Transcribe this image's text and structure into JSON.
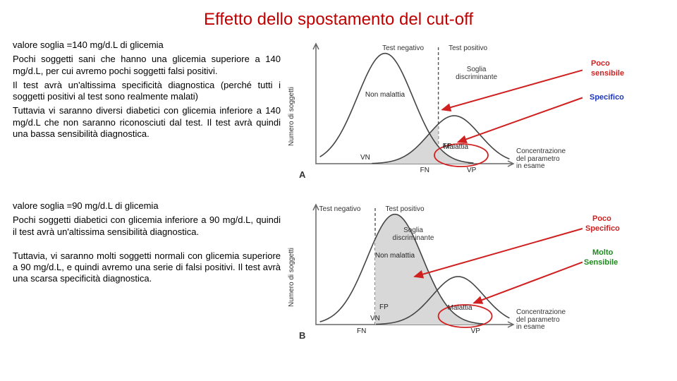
{
  "title": {
    "text": "Effetto dello spostamento del cut-off",
    "color": "#c00000",
    "fontSize": 24
  },
  "colors": {
    "title": "#c00000",
    "bodyText": "#000000",
    "axis": "#666666",
    "curveFill": "#d8d8d8",
    "curveStroke": "#444444",
    "threshold": "#555555",
    "arrow": "#d02020",
    "redText": "#d02020",
    "blueText": "#1a35c4",
    "greenText": "#1d8a1d",
    "labelText": "#333333"
  },
  "sectionA": {
    "subhead": "valore soglia =140 mg/d.L di glicemia",
    "p1": "Pochi soggetti sani che hanno una glicemia superiore a 140 mg/d.L, per cui avremo pochi soggetti falsi positivi.",
    "p2": "Il test avrà un'altissima specificità diagnostica (perché tutti i soggetti positivi al test sono realmente malati)",
    "p3": "Tuttavia vi saranno diversi diabetici con glicemia inferiore a 140 mg/d.L che non saranno riconosciuti dal test. Il test avrà quindi una bassa sensibilità diagnostica.",
    "diagram": {
      "panel": "A",
      "ylabel": "Numero di soggetti",
      "leftTop": "Test negativo",
      "rightTop": "Test positivo",
      "threshLabel": "Soglia discriminante",
      "leftCurve": "Non malattia",
      "rightCurve": "Malattia",
      "VN": "VN",
      "FP": "FP",
      "FN": "FN",
      "VP": "VP",
      "xlabel1": "Concentrazione",
      "xlabel2": "del parametro",
      "xlabel3": "in esame",
      "ann1a": "Poco",
      "ann1b": "sensibile",
      "ann2": "Specifico",
      "thresholdX": 0.62,
      "curves": {
        "healthy": {
          "mu": 0.35,
          "sigma": 0.14,
          "peak": 0.92
        },
        "diseased": {
          "mu": 0.7,
          "sigma": 0.13,
          "peak": 0.4
        }
      },
      "arrows": [
        {
          "from": [
            1.35,
            0.22
          ],
          "to": [
            0.64,
            0.55
          ]
        },
        {
          "from": [
            1.35,
            0.45
          ],
          "to": [
            0.72,
            0.82
          ]
        }
      ]
    }
  },
  "sectionB": {
    "subhead": "valore soglia =90 mg/d.L di glicemia",
    "p1": "Pochi soggetti diabetici con glicemia inferiore a 90 mg/d.L, quindi il test avrà un'altissima sensibilità diagnostica.",
    "p2": "Tuttavia, vi saranno molti soggetti normali con glicemia superiore a 90 mg/d.L, e quindi avremo una serie di falsi positivi. Il test avrà una scarsa specificità diagnostica.",
    "diagram": {
      "panel": "B",
      "ylabel": "Numero di soggetti",
      "leftTop": "Test negativo",
      "rightTop": "Test positivo",
      "threshLabel": "Soglia discriminante",
      "leftCurve": "Non malattia",
      "rightCurve": "Malattia",
      "VN": "VN",
      "FP": "FP",
      "FN": "FN",
      "VP": "VP",
      "xlabel1": "Concentrazione",
      "xlabel2": "del parametro",
      "xlabel3": "in esame",
      "ann1a": "Poco",
      "ann1b": "Specifico",
      "ann2a": "Molto",
      "ann2b": "Sensibile",
      "thresholdX": 0.3,
      "curves": {
        "healthy": {
          "mu": 0.4,
          "sigma": 0.14,
          "peak": 0.92
        },
        "diseased": {
          "mu": 0.72,
          "sigma": 0.13,
          "peak": 0.4
        }
      },
      "arrows": [
        {
          "from": [
            1.35,
            0.2
          ],
          "to": [
            0.5,
            0.6
          ]
        },
        {
          "from": [
            1.35,
            0.48
          ],
          "to": [
            0.8,
            0.82
          ]
        }
      ]
    }
  }
}
